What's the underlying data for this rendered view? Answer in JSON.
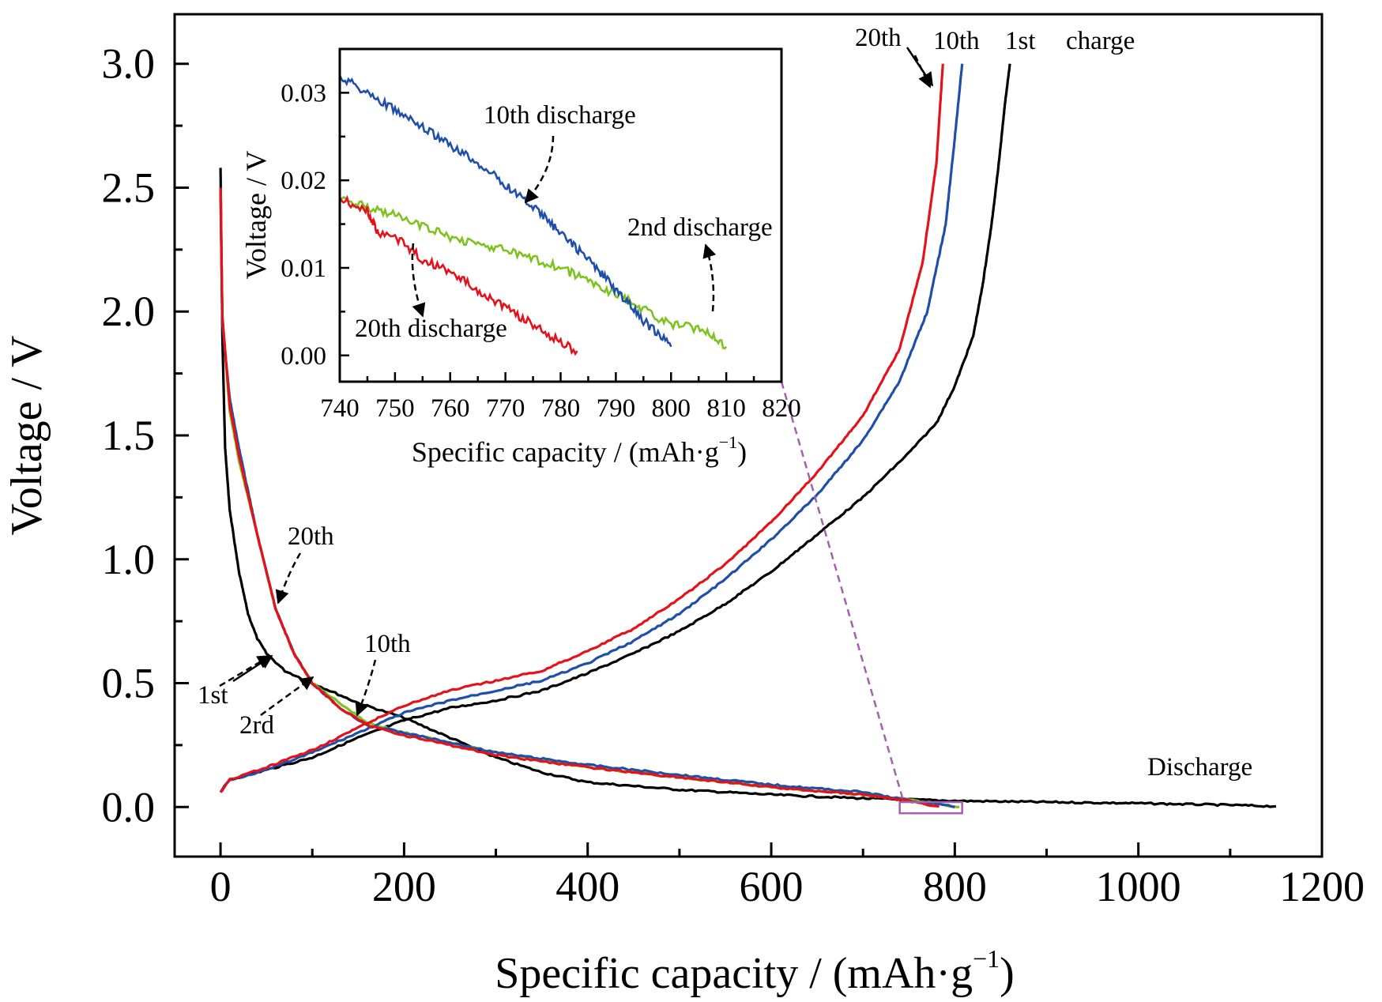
{
  "chart_data": {
    "type": "line",
    "main": {
      "xlabel": "Specific capacity / (mAh·g",
      "xlabel_sup": "−1",
      "xlabel_close": ")",
      "ylabel": "Voltage / V",
      "xlim": [
        -50,
        1200
      ],
      "ylim": [
        -0.2,
        3.2
      ],
      "xticks": [
        0,
        200,
        400,
        600,
        800,
        1000,
        1200
      ],
      "xtick_labels": [
        "0",
        "200",
        "400",
        "600",
        "800",
        "1000",
        "1200"
      ],
      "yticks": [
        0.0,
        0.5,
        1.0,
        1.5,
        2.0,
        2.5,
        3.0
      ],
      "ytick_labels": [
        "0.0",
        "0.5",
        "1.0",
        "1.5",
        "2.0",
        "2.5",
        "3.0"
      ],
      "colors": {
        "1st": "#000000",
        "2nd": "#7dc21e",
        "10th": "#1f4fa8",
        "20th": "#e3121b",
        "zoom": "#a65fae"
      },
      "series": [
        {
          "key": "1st",
          "kind": "discharge",
          "points": [
            [
              0,
              2.58
            ],
            [
              2,
              1.9
            ],
            [
              5,
              1.45
            ],
            [
              10,
              1.2
            ],
            [
              20,
              0.95
            ],
            [
              30,
              0.78
            ],
            [
              40,
              0.68
            ],
            [
              50,
              0.62
            ],
            [
              70,
              0.55
            ],
            [
              100,
              0.5
            ],
            [
              150,
              0.42
            ],
            [
              200,
              0.36
            ],
            [
              250,
              0.28
            ],
            [
              300,
              0.2
            ],
            [
              350,
              0.14
            ],
            [
              400,
              0.1
            ],
            [
              500,
              0.07
            ],
            [
              600,
              0.05
            ],
            [
              700,
              0.035
            ],
            [
              800,
              0.025
            ],
            [
              900,
              0.02
            ],
            [
              1000,
              0.015
            ],
            [
              1100,
              0.008
            ],
            [
              1150,
              0.003
            ]
          ]
        },
        {
          "key": "1st",
          "kind": "charge",
          "points": [
            [
              0,
              0.06
            ],
            [
              10,
              0.11
            ],
            [
              50,
              0.15
            ],
            [
              100,
              0.2
            ],
            [
              150,
              0.28
            ],
            [
              200,
              0.35
            ],
            [
              250,
              0.4
            ],
            [
              300,
              0.43
            ],
            [
              350,
              0.47
            ],
            [
              400,
              0.54
            ],
            [
              450,
              0.62
            ],
            [
              500,
              0.71
            ],
            [
              550,
              0.82
            ],
            [
              600,
              0.95
            ],
            [
              650,
              1.1
            ],
            [
              700,
              1.25
            ],
            [
              750,
              1.43
            ],
            [
              780,
              1.55
            ],
            [
              800,
              1.7
            ],
            [
              820,
              1.9
            ],
            [
              830,
              2.1
            ],
            [
              840,
              2.35
            ],
            [
              848,
              2.6
            ],
            [
              855,
              2.85
            ],
            [
              860,
              3.0
            ]
          ]
        },
        {
          "key": "2nd",
          "kind": "discharge",
          "points": [
            [
              0,
              2.5
            ],
            [
              2,
              1.98
            ],
            [
              10,
              1.6
            ],
            [
              20,
              1.4
            ],
            [
              40,
              1.1
            ],
            [
              60,
              0.8
            ],
            [
              80,
              0.62
            ],
            [
              100,
              0.5
            ],
            [
              130,
              0.42
            ],
            [
              160,
              0.34
            ],
            [
              200,
              0.3
            ],
            [
              300,
              0.22
            ],
            [
              400,
              0.16
            ],
            [
              500,
              0.12
            ],
            [
              600,
              0.08
            ],
            [
              700,
              0.05
            ],
            [
              750,
              0.03
            ],
            [
              780,
              0.01
            ],
            [
              805,
              0.0
            ]
          ]
        },
        {
          "key": "10th",
          "kind": "discharge",
          "points": [
            [
              0,
              2.48
            ],
            [
              2,
              1.95
            ],
            [
              10,
              1.65
            ],
            [
              20,
              1.45
            ],
            [
              40,
              1.1
            ],
            [
              60,
              0.8
            ],
            [
              80,
              0.62
            ],
            [
              100,
              0.5
            ],
            [
              130,
              0.4
            ],
            [
              160,
              0.33
            ],
            [
              200,
              0.3
            ],
            [
              300,
              0.22
            ],
            [
              400,
              0.17
            ],
            [
              500,
              0.13
            ],
            [
              600,
              0.09
            ],
            [
              700,
              0.06
            ],
            [
              760,
              0.02
            ],
            [
              790,
              0.01
            ],
            [
              800,
              0.0
            ]
          ]
        },
        {
          "key": "10th",
          "kind": "charge",
          "points": [
            [
              0,
              0.06
            ],
            [
              10,
              0.11
            ],
            [
              50,
              0.15
            ],
            [
              100,
              0.22
            ],
            [
              150,
              0.3
            ],
            [
              200,
              0.38
            ],
            [
              250,
              0.43
            ],
            [
              300,
              0.47
            ],
            [
              350,
              0.51
            ],
            [
              400,
              0.58
            ],
            [
              450,
              0.67
            ],
            [
              500,
              0.78
            ],
            [
              550,
              0.92
            ],
            [
              600,
              1.08
            ],
            [
              650,
              1.26
            ],
            [
              700,
              1.48
            ],
            [
              740,
              1.72
            ],
            [
              770,
              2.0
            ],
            [
              790,
              2.35
            ],
            [
              800,
              2.7
            ],
            [
              808,
              3.0
            ]
          ]
        },
        {
          "key": "20th",
          "kind": "discharge",
          "points": [
            [
              0,
              2.5
            ],
            [
              2,
              1.98
            ],
            [
              10,
              1.62
            ],
            [
              20,
              1.42
            ],
            [
              40,
              1.1
            ],
            [
              60,
              0.8
            ],
            [
              80,
              0.62
            ],
            [
              100,
              0.5
            ],
            [
              130,
              0.4
            ],
            [
              160,
              0.33
            ],
            [
              200,
              0.29
            ],
            [
              300,
              0.21
            ],
            [
              400,
              0.16
            ],
            [
              500,
              0.12
            ],
            [
              600,
              0.08
            ],
            [
              700,
              0.05
            ],
            [
              750,
              0.025
            ],
            [
              770,
              0.01
            ],
            [
              783,
              0.003
            ]
          ]
        },
        {
          "key": "20th",
          "kind": "charge",
          "points": [
            [
              0,
              0.06
            ],
            [
              10,
              0.11
            ],
            [
              50,
              0.16
            ],
            [
              100,
              0.23
            ],
            [
              150,
              0.32
            ],
            [
              200,
              0.41
            ],
            [
              250,
              0.47
            ],
            [
              300,
              0.51
            ],
            [
              350,
              0.55
            ],
            [
              400,
              0.63
            ],
            [
              450,
              0.72
            ],
            [
              500,
              0.84
            ],
            [
              550,
              0.98
            ],
            [
              600,
              1.15
            ],
            [
              650,
              1.35
            ],
            [
              700,
              1.58
            ],
            [
              740,
              1.85
            ],
            [
              765,
              2.2
            ],
            [
              780,
              2.6
            ],
            [
              787,
              3.0
            ]
          ]
        }
      ],
      "annotations": {
        "a_20th_top": "20th",
        "a_10th_top": "10th",
        "a_1st_top": "1st",
        "a_charge": "charge",
        "a_discharge": "Discharge",
        "a_20th_mid": "20th",
        "a_10th_mid": "10th",
        "a_1st_left": "1st",
        "a_2rd": "2rd"
      }
    },
    "inset": {
      "xlabel": "Specific capacity / (mAh·g",
      "xlabel_sup": "−1",
      "xlabel_close": ")",
      "ylabel": "Voltage / V",
      "xlim": [
        740,
        820
      ],
      "ylim": [
        -0.003,
        0.035
      ],
      "xticks": [
        740,
        750,
        760,
        770,
        780,
        790,
        800,
        810,
        820
      ],
      "xtick_labels": [
        "740",
        "750",
        "760",
        "770",
        "780",
        "790",
        "800",
        "810",
        "820"
      ],
      "yticks": [
        0.0,
        0.01,
        0.02,
        0.03
      ],
      "ytick_labels": [
        "0.00",
        "0.01",
        "0.02",
        "0.03"
      ],
      "series": [
        {
          "key": "10th",
          "points": [
            [
              740,
              0.032
            ],
            [
              745,
              0.03
            ],
            [
              750,
              0.028
            ],
            [
              755,
              0.026
            ],
            [
              760,
              0.024
            ],
            [
              765,
              0.022
            ],
            [
              770,
              0.0195
            ],
            [
              775,
              0.017
            ],
            [
              780,
              0.014
            ],
            [
              785,
              0.011
            ],
            [
              790,
              0.0075
            ],
            [
              795,
              0.004
            ],
            [
              800,
              0.001
            ]
          ]
        },
        {
          "key": "2nd",
          "points": [
            [
              740,
              0.018
            ],
            [
              750,
              0.016
            ],
            [
              760,
              0.0135
            ],
            [
              770,
              0.012
            ],
            [
              780,
              0.01
            ],
            [
              790,
              0.007
            ],
            [
              800,
              0.0035
            ],
            [
              806,
              0.003
            ],
            [
              810,
              0.001
            ]
          ]
        },
        {
          "key": "20th",
          "points": [
            [
              740,
              0.018
            ],
            [
              745,
              0.0165
            ],
            [
              747,
              0.014
            ],
            [
              750,
              0.0135
            ],
            [
              755,
              0.011
            ],
            [
              760,
              0.0095
            ],
            [
              765,
              0.0075
            ],
            [
              770,
              0.0055
            ],
            [
              775,
              0.0035
            ],
            [
              780,
              0.0015
            ],
            [
              783,
              0.0005
            ]
          ]
        }
      ],
      "annotations": {
        "i_10th": "10th discharge",
        "i_2nd": "2nd discharge",
        "i_20th": "20th discharge"
      }
    }
  }
}
